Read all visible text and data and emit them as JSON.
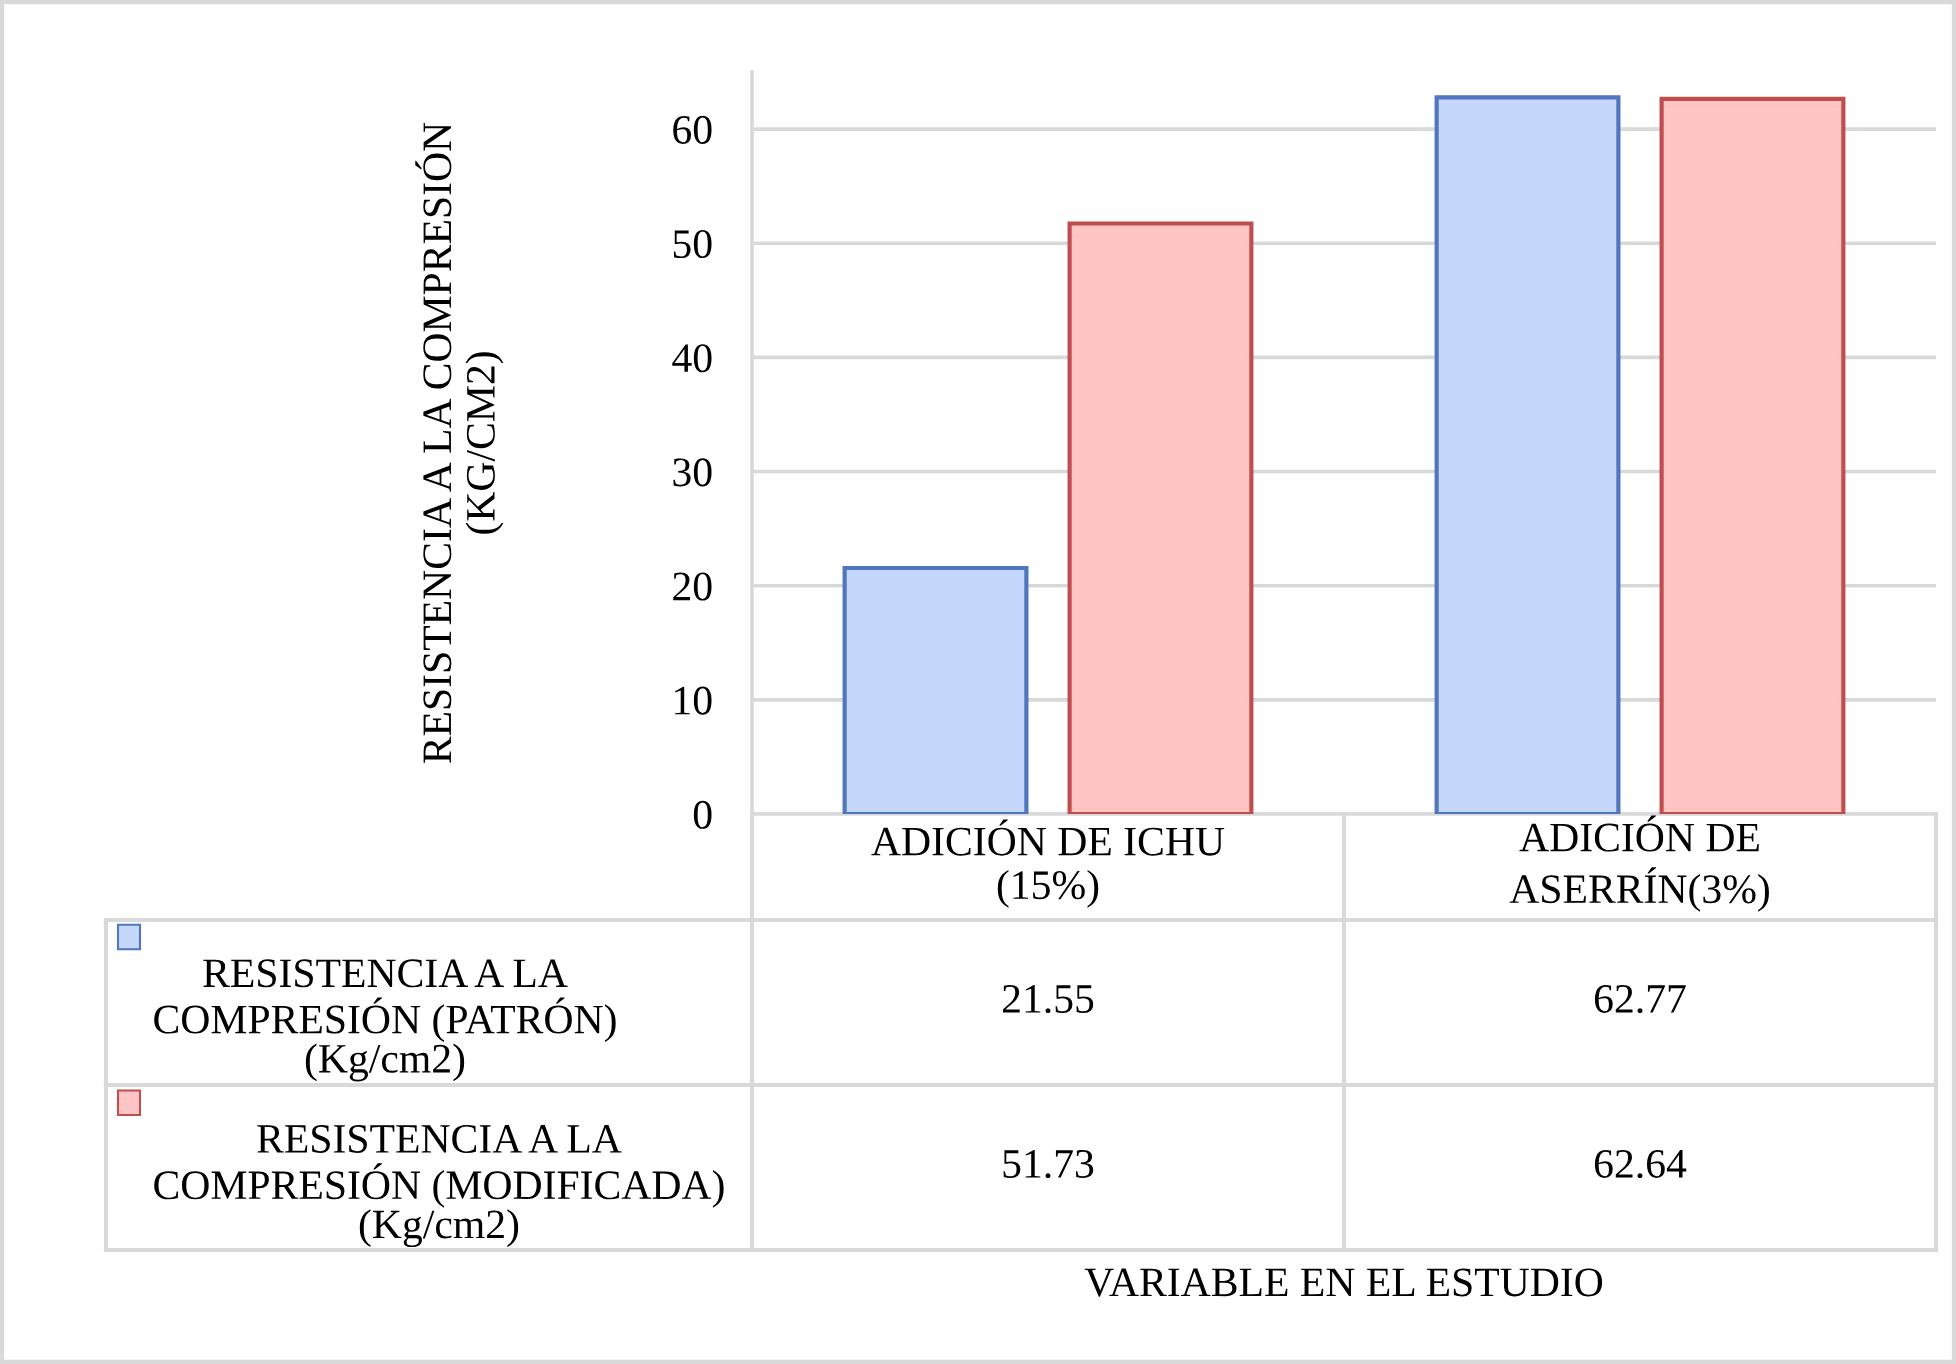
{
  "chart_data": {
    "type": "bar",
    "categories": [
      "ADICIÓN DE ICHU\n(15%)",
      "ADICIÓN DE\nASERRÍN(3%)"
    ],
    "series": [
      {
        "name": "RESISTENCIA A LA\nCOMPRESIÓN (PATRÓN)\n(Kg/cm2)",
        "color": "#c5d8fb",
        "values": [
          21.55,
          62.77
        ]
      },
      {
        "name": "RESISTENCIA A LA\nCOMPRESIÓN (MODIFICADA)\n(Kg/cm2)",
        "color": "#ffc5c5",
        "values": [
          51.73,
          62.64
        ]
      }
    ],
    "ylabel": "RESISTENCIA A LA COMPRESIÓN\n(KG/CM2)",
    "annotations": [
      "VARIABLE EN EL ESTUDIO"
    ],
    "ylim": [
      0,
      65
    ],
    "yticks": [
      0,
      10,
      20,
      30,
      40,
      50,
      60
    ],
    "grid": "y",
    "legend": "bottom left",
    "data_labels": true
  }
}
